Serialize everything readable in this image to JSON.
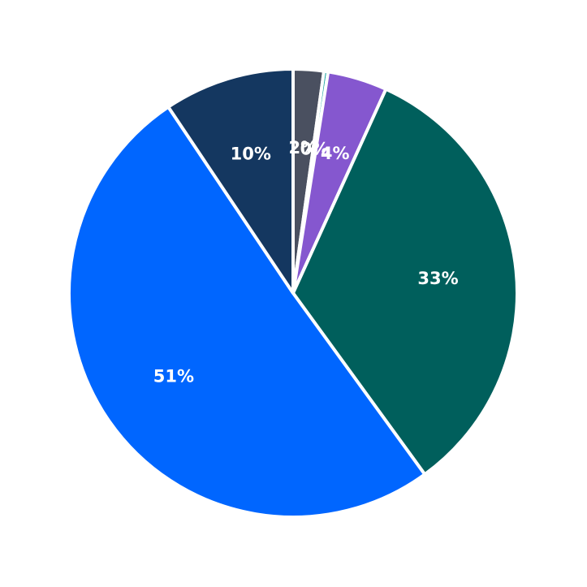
{
  "chart_data": {
    "type": "pie",
    "start_angle_deg": 90,
    "direction": "clockwise",
    "slices": [
      {
        "label": "2%",
        "value": 2.2,
        "color": "#4a5060"
      },
      {
        "label": "0%",
        "value": 0.3,
        "color": "#1fa3a3"
      },
      {
        "label": "4%",
        "value": 4.3,
        "color": "#8557cf"
      },
      {
        "label": "33%",
        "value": 33.2,
        "color": "#005f5c"
      },
      {
        "label": "51%",
        "value": 50.6,
        "color": "#0066ff"
      },
      {
        "label": "10%",
        "value": 9.4,
        "color": "#143760"
      }
    ]
  }
}
